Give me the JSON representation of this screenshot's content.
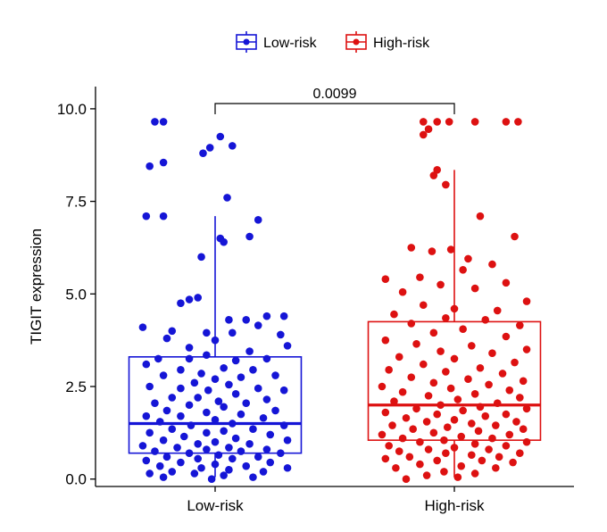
{
  "chart_data": {
    "type": "box",
    "ylabel": "TIGIT expression",
    "ylim": [
      -0.2,
      10.6
    ],
    "yticks": [
      0.0,
      2.5,
      5.0,
      7.5,
      10.0
    ],
    "ytick_labels": [
      "0.0",
      "2.5",
      "5.0",
      "7.5",
      "10.0"
    ],
    "categories": [
      "Low-risk",
      "High-risk"
    ],
    "legend": {
      "position": "top",
      "entries": [
        "Low-risk",
        "High-risk"
      ]
    },
    "pvalue": "0.0099",
    "colors": {
      "Low-risk": "#1515d6",
      "High-risk": "#dd1111"
    },
    "boxes": [
      {
        "group": "Low-risk",
        "q1": 0.7,
        "median": 1.5,
        "q3": 3.3,
        "whisker_low": 0.05,
        "whisker_high": 7.1
      },
      {
        "group": "High-risk",
        "q1": 1.05,
        "median": 2.0,
        "q3": 4.25,
        "whisker_low": 0.05,
        "whisker_high": 8.35
      }
    ],
    "points": {
      "Low-risk": [
        {
          "x": -0.35,
          "y": 9.65
        },
        {
          "x": -0.3,
          "y": 9.65
        },
        {
          "x": 0.03,
          "y": 9.25
        },
        {
          "x": 0.1,
          "y": 9.0
        },
        {
          "x": -0.03,
          "y": 8.95
        },
        {
          "x": -0.07,
          "y": 8.8
        },
        {
          "x": -0.3,
          "y": 8.55
        },
        {
          "x": -0.38,
          "y": 8.45
        },
        {
          "x": 0.07,
          "y": 7.6
        },
        {
          "x": -0.4,
          "y": 7.1
        },
        {
          "x": -0.3,
          "y": 7.1
        },
        {
          "x": 0.25,
          "y": 7.0
        },
        {
          "x": 0.2,
          "y": 6.55
        },
        {
          "x": 0.03,
          "y": 6.5
        },
        {
          "x": 0.05,
          "y": 6.4
        },
        {
          "x": -0.08,
          "y": 6.0
        },
        {
          "x": -0.1,
          "y": 4.9
        },
        {
          "x": -0.15,
          "y": 4.85
        },
        {
          "x": -0.2,
          "y": 4.75
        },
        {
          "x": 0.3,
          "y": 4.4
        },
        {
          "x": 0.4,
          "y": 4.4
        },
        {
          "x": 0.08,
          "y": 4.3
        },
        {
          "x": 0.18,
          "y": 4.3
        },
        {
          "x": -0.42,
          "y": 4.1
        },
        {
          "x": -0.25,
          "y": 4.0
        },
        {
          "x": 0.25,
          "y": 4.15
        },
        {
          "x": -0.05,
          "y": 3.95
        },
        {
          "x": 0.1,
          "y": 3.95
        },
        {
          "x": 0.38,
          "y": 3.9
        },
        {
          "x": -0.28,
          "y": 3.8
        },
        {
          "x": 0.0,
          "y": 3.75
        },
        {
          "x": 0.42,
          "y": 3.6
        },
        {
          "x": -0.15,
          "y": 3.55
        },
        {
          "x": 0.2,
          "y": 3.45
        },
        {
          "x": -0.05,
          "y": 3.35
        },
        {
          "x": -0.33,
          "y": 3.25
        },
        {
          "x": -0.15,
          "y": 3.25
        },
        {
          "x": 0.12,
          "y": 3.2
        },
        {
          "x": 0.3,
          "y": 3.25
        },
        {
          "x": -0.4,
          "y": 3.1
        },
        {
          "x": 0.05,
          "y": 3.0
        },
        {
          "x": -0.2,
          "y": 2.95
        },
        {
          "x": 0.22,
          "y": 2.95
        },
        {
          "x": -0.08,
          "y": 2.85
        },
        {
          "x": 0.35,
          "y": 2.8
        },
        {
          "x": -0.3,
          "y": 2.8
        },
        {
          "x": 0.15,
          "y": 2.75
        },
        {
          "x": 0.0,
          "y": 2.7
        },
        {
          "x": -0.12,
          "y": 2.6
        },
        {
          "x": 0.08,
          "y": 2.55
        },
        {
          "x": -0.38,
          "y": 2.5
        },
        {
          "x": -0.2,
          "y": 2.45
        },
        {
          "x": 0.25,
          "y": 2.45
        },
        {
          "x": -0.04,
          "y": 2.4
        },
        {
          "x": 0.4,
          "y": 2.4
        },
        {
          "x": 0.12,
          "y": 2.3
        },
        {
          "x": -0.25,
          "y": 2.2
        },
        {
          "x": -0.1,
          "y": 2.2
        },
        {
          "x": 0.3,
          "y": 2.15
        },
        {
          "x": 0.02,
          "y": 2.1
        },
        {
          "x": -0.35,
          "y": 2.05
        },
        {
          "x": 0.18,
          "y": 2.05
        },
        {
          "x": -0.15,
          "y": 2.0
        },
        {
          "x": 0.05,
          "y": 1.95
        },
        {
          "x": -0.28,
          "y": 1.85
        },
        {
          "x": 0.35,
          "y": 1.85
        },
        {
          "x": -0.05,
          "y": 1.8
        },
        {
          "x": 0.15,
          "y": 1.75
        },
        {
          "x": -0.4,
          "y": 1.7
        },
        {
          "x": -0.2,
          "y": 1.7
        },
        {
          "x": 0.28,
          "y": 1.65
        },
        {
          "x": 0.0,
          "y": 1.6
        },
        {
          "x": -0.32,
          "y": 1.55
        },
        {
          "x": 0.1,
          "y": 1.5
        },
        {
          "x": 0.4,
          "y": 1.45
        },
        {
          "x": -0.14,
          "y": 1.45
        },
        {
          "x": -0.25,
          "y": 1.35
        },
        {
          "x": 0.22,
          "y": 1.35
        },
        {
          "x": 0.05,
          "y": 1.3
        },
        {
          "x": -0.05,
          "y": 1.25
        },
        {
          "x": -0.38,
          "y": 1.25
        },
        {
          "x": 0.32,
          "y": 1.2
        },
        {
          "x": -0.18,
          "y": 1.15
        },
        {
          "x": 0.12,
          "y": 1.1
        },
        {
          "x": -0.3,
          "y": 1.05
        },
        {
          "x": 0.42,
          "y": 1.05
        },
        {
          "x": 0.0,
          "y": 1.0
        },
        {
          "x": -0.1,
          "y": 0.95
        },
        {
          "x": 0.2,
          "y": 0.95
        },
        {
          "x": -0.42,
          "y": 0.9
        },
        {
          "x": 0.08,
          "y": 0.85
        },
        {
          "x": -0.22,
          "y": 0.85
        },
        {
          "x": 0.3,
          "y": 0.8
        },
        {
          "x": -0.05,
          "y": 0.8
        },
        {
          "x": -0.35,
          "y": 0.75
        },
        {
          "x": 0.15,
          "y": 0.75
        },
        {
          "x": -0.15,
          "y": 0.7
        },
        {
          "x": 0.38,
          "y": 0.7
        },
        {
          "x": 0.02,
          "y": 0.65
        },
        {
          "x": -0.28,
          "y": 0.6
        },
        {
          "x": 0.25,
          "y": 0.6
        },
        {
          "x": -0.1,
          "y": 0.55
        },
        {
          "x": 0.1,
          "y": 0.55
        },
        {
          "x": -0.4,
          "y": 0.5
        },
        {
          "x": 0.32,
          "y": 0.45
        },
        {
          "x": -0.2,
          "y": 0.45
        },
        {
          "x": 0.0,
          "y": 0.4
        },
        {
          "x": -0.32,
          "y": 0.35
        },
        {
          "x": 0.18,
          "y": 0.35
        },
        {
          "x": -0.08,
          "y": 0.3
        },
        {
          "x": 0.42,
          "y": 0.3
        },
        {
          "x": 0.08,
          "y": 0.25
        },
        {
          "x": -0.25,
          "y": 0.2
        },
        {
          "x": 0.28,
          "y": 0.2
        },
        {
          "x": -0.38,
          "y": 0.15
        },
        {
          "x": -0.12,
          "y": 0.15
        },
        {
          "x": 0.05,
          "y": 0.1
        },
        {
          "x": -0.3,
          "y": 0.05
        },
        {
          "x": 0.22,
          "y": 0.05
        },
        {
          "x": -0.02,
          "y": 0.0
        }
      ],
      "High-risk": [
        {
          "x": -0.18,
          "y": 9.65
        },
        {
          "x": -0.1,
          "y": 9.65
        },
        {
          "x": -0.03,
          "y": 9.65
        },
        {
          "x": 0.12,
          "y": 9.65
        },
        {
          "x": 0.3,
          "y": 9.65
        },
        {
          "x": 0.37,
          "y": 9.65
        },
        {
          "x": -0.15,
          "y": 9.45
        },
        {
          "x": -0.18,
          "y": 9.3
        },
        {
          "x": -0.1,
          "y": 8.35
        },
        {
          "x": -0.12,
          "y": 8.2
        },
        {
          "x": -0.05,
          "y": 7.95
        },
        {
          "x": 0.15,
          "y": 7.1
        },
        {
          "x": 0.35,
          "y": 6.55
        },
        {
          "x": -0.25,
          "y": 6.25
        },
        {
          "x": -0.13,
          "y": 6.15
        },
        {
          "x": -0.02,
          "y": 6.2
        },
        {
          "x": 0.08,
          "y": 5.95
        },
        {
          "x": 0.22,
          "y": 5.8
        },
        {
          "x": 0.05,
          "y": 5.65
        },
        {
          "x": -0.2,
          "y": 5.45
        },
        {
          "x": -0.4,
          "y": 5.4
        },
        {
          "x": 0.3,
          "y": 5.3
        },
        {
          "x": -0.08,
          "y": 5.25
        },
        {
          "x": 0.12,
          "y": 5.15
        },
        {
          "x": -0.3,
          "y": 5.05
        },
        {
          "x": 0.42,
          "y": 4.8
        },
        {
          "x": -0.18,
          "y": 4.7
        },
        {
          "x": 0.0,
          "y": 4.6
        },
        {
          "x": 0.25,
          "y": 4.55
        },
        {
          "x": -0.35,
          "y": 4.45
        },
        {
          "x": -0.05,
          "y": 4.35
        },
        {
          "x": 0.18,
          "y": 4.3
        },
        {
          "x": -0.25,
          "y": 4.2
        },
        {
          "x": 0.38,
          "y": 4.15
        },
        {
          "x": 0.05,
          "y": 4.05
        },
        {
          "x": -0.12,
          "y": 3.95
        },
        {
          "x": 0.3,
          "y": 3.85
        },
        {
          "x": -0.4,
          "y": 3.75
        },
        {
          "x": -0.22,
          "y": 3.65
        },
        {
          "x": 0.1,
          "y": 3.6
        },
        {
          "x": 0.42,
          "y": 3.5
        },
        {
          "x": -0.08,
          "y": 3.45
        },
        {
          "x": 0.22,
          "y": 3.4
        },
        {
          "x": -0.32,
          "y": 3.3
        },
        {
          "x": 0.0,
          "y": 3.25
        },
        {
          "x": 0.35,
          "y": 3.15
        },
        {
          "x": -0.18,
          "y": 3.1
        },
        {
          "x": 0.15,
          "y": 3.0
        },
        {
          "x": -0.38,
          "y": 2.95
        },
        {
          "x": -0.05,
          "y": 2.9
        },
        {
          "x": 0.28,
          "y": 2.85
        },
        {
          "x": -0.25,
          "y": 2.75
        },
        {
          "x": 0.08,
          "y": 2.7
        },
        {
          "x": 0.4,
          "y": 2.65
        },
        {
          "x": -0.12,
          "y": 2.6
        },
        {
          "x": 0.2,
          "y": 2.55
        },
        {
          "x": -0.42,
          "y": 2.5
        },
        {
          "x": -0.02,
          "y": 2.45
        },
        {
          "x": 0.32,
          "y": 2.4
        },
        {
          "x": -0.3,
          "y": 2.35
        },
        {
          "x": 0.12,
          "y": 2.3
        },
        {
          "x": -0.15,
          "y": 2.25
        },
        {
          "x": 0.38,
          "y": 2.2
        },
        {
          "x": 0.02,
          "y": 2.15
        },
        {
          "x": -0.35,
          "y": 2.1
        },
        {
          "x": 0.25,
          "y": 2.05
        },
        {
          "x": -0.08,
          "y": 2.0
        },
        {
          "x": 0.15,
          "y": 1.95
        },
        {
          "x": -0.22,
          "y": 1.9
        },
        {
          "x": 0.42,
          "y": 1.9
        },
        {
          "x": 0.05,
          "y": 1.85
        },
        {
          "x": -0.4,
          "y": 1.8
        },
        {
          "x": -0.1,
          "y": 1.75
        },
        {
          "x": 0.3,
          "y": 1.75
        },
        {
          "x": 0.18,
          "y": 1.7
        },
        {
          "x": -0.28,
          "y": 1.65
        },
        {
          "x": 0.0,
          "y": 1.6
        },
        {
          "x": 0.36,
          "y": 1.55
        },
        {
          "x": -0.16,
          "y": 1.55
        },
        {
          "x": 0.1,
          "y": 1.5
        },
        {
          "x": -0.36,
          "y": 1.45
        },
        {
          "x": 0.24,
          "y": 1.45
        },
        {
          "x": -0.04,
          "y": 1.4
        },
        {
          "x": 0.4,
          "y": 1.35
        },
        {
          "x": -0.24,
          "y": 1.35
        },
        {
          "x": 0.14,
          "y": 1.3
        },
        {
          "x": -0.12,
          "y": 1.25
        },
        {
          "x": 0.32,
          "y": 1.2
        },
        {
          "x": -0.42,
          "y": 1.2
        },
        {
          "x": 0.04,
          "y": 1.15
        },
        {
          "x": -0.3,
          "y": 1.1
        },
        {
          "x": 0.22,
          "y": 1.1
        },
        {
          "x": -0.06,
          "y": 1.05
        },
        {
          "x": 0.42,
          "y": 1.0
        },
        {
          "x": -0.2,
          "y": 1.0
        },
        {
          "x": 0.12,
          "y": 0.95
        },
        {
          "x": -0.38,
          "y": 0.9
        },
        {
          "x": 0.3,
          "y": 0.9
        },
        {
          "x": 0.0,
          "y": 0.85
        },
        {
          "x": -0.15,
          "y": 0.8
        },
        {
          "x": 0.2,
          "y": 0.8
        },
        {
          "x": -0.32,
          "y": 0.75
        },
        {
          "x": 0.38,
          "y": 0.7
        },
        {
          "x": -0.05,
          "y": 0.7
        },
        {
          "x": 0.1,
          "y": 0.65
        },
        {
          "x": -0.26,
          "y": 0.6
        },
        {
          "x": 0.26,
          "y": 0.6
        },
        {
          "x": -0.4,
          "y": 0.55
        },
        {
          "x": -0.1,
          "y": 0.5
        },
        {
          "x": 0.16,
          "y": 0.5
        },
        {
          "x": 0.34,
          "y": 0.45
        },
        {
          "x": -0.2,
          "y": 0.4
        },
        {
          "x": 0.04,
          "y": 0.35
        },
        {
          "x": -0.34,
          "y": 0.3
        },
        {
          "x": 0.24,
          "y": 0.3
        },
        {
          "x": -0.06,
          "y": 0.2
        },
        {
          "x": 0.12,
          "y": 0.15
        },
        {
          "x": -0.16,
          "y": 0.1
        },
        {
          "x": 0.02,
          "y": 0.05
        },
        {
          "x": -0.28,
          "y": 0.0
        }
      ]
    }
  }
}
